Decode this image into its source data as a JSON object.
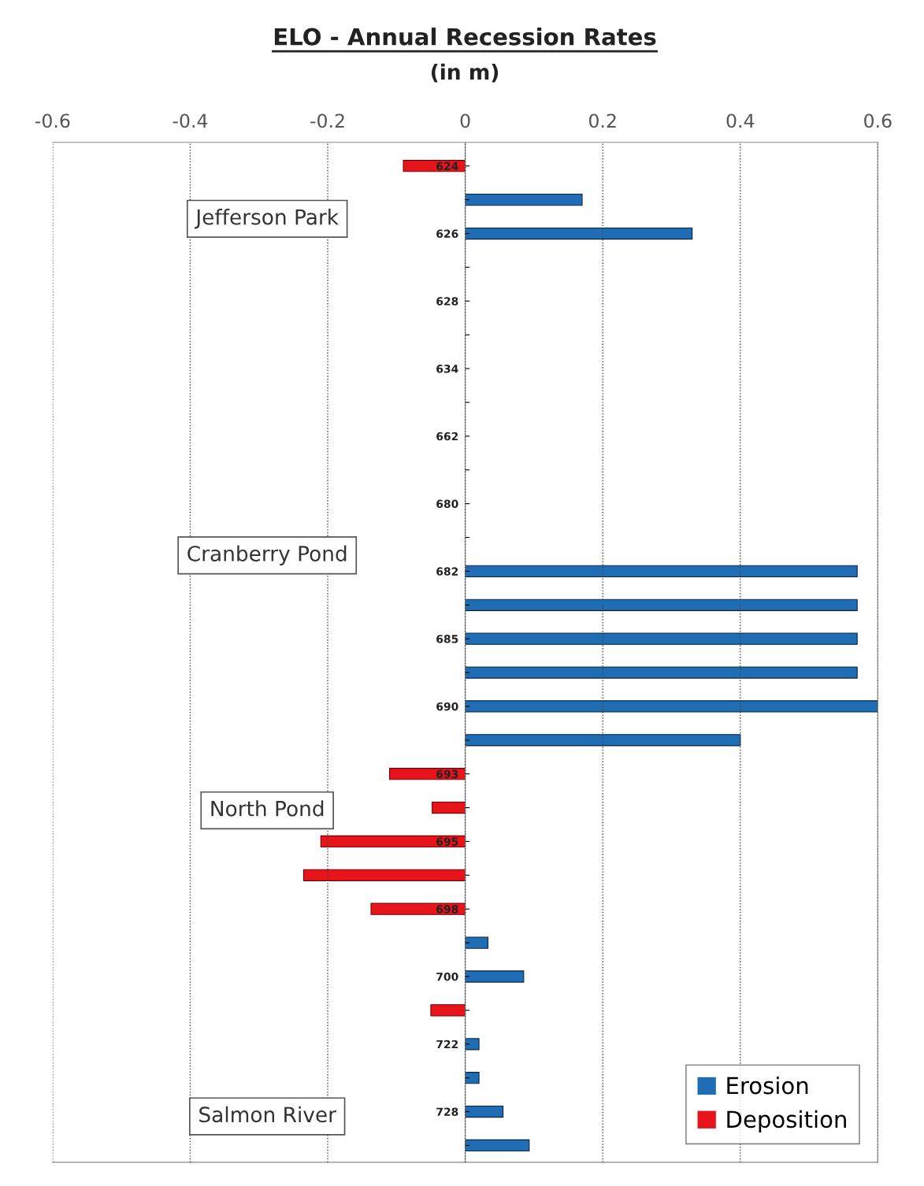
{
  "chart_data": {
    "type": "bar",
    "orientation": "horizontal",
    "title": "ELO - Annual Recession Rates",
    "subtitle": "(in m)",
    "categories": [
      "624",
      null,
      "626",
      null,
      "628",
      null,
      "634",
      null,
      "662",
      null,
      "680",
      null,
      "682",
      null,
      "685",
      null,
      "690",
      null,
      "693",
      null,
      "695",
      null,
      "698",
      null,
      "700",
      null,
      "722",
      null,
      "728",
      null
    ],
    "series": [
      {
        "name": "Erosion",
        "color": "#1f6db5",
        "values": [
          null,
          0.17,
          0.33,
          null,
          null,
          null,
          null,
          null,
          null,
          null,
          null,
          null,
          0.57,
          0.57,
          0.57,
          0.57,
          0.6,
          0.4,
          null,
          null,
          null,
          null,
          null,
          0.033,
          0.085,
          null,
          0.02,
          0.02,
          0.055,
          0.093
        ]
      },
      {
        "name": "Deposition",
        "color": "#e8141c",
        "values": [
          -0.09,
          null,
          null,
          null,
          null,
          null,
          null,
          null,
          null,
          null,
          null,
          null,
          null,
          null,
          null,
          null,
          null,
          null,
          -0.11,
          -0.048,
          -0.21,
          -0.235,
          -0.137,
          null,
          null,
          -0.05,
          null,
          null,
          null,
          null
        ]
      }
    ],
    "xlim": [
      -0.6,
      0.6
    ],
    "xticks": [
      -0.6,
      -0.4,
      -0.2,
      0,
      0.2,
      0.4,
      0.6
    ],
    "grid": "x",
    "legend": "bottom right",
    "annotations": [
      "Jefferson Park",
      "Cranberry Pond",
      "North Pond",
      "Salmon River"
    ]
  }
}
